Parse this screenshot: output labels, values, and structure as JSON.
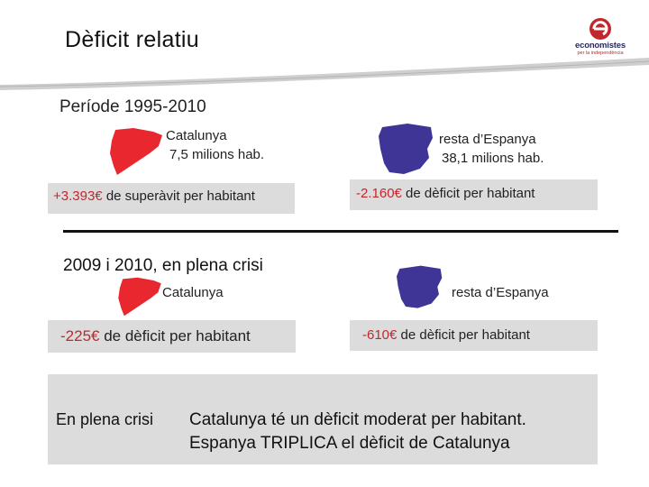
{
  "header": {
    "title": "Dèficit  relatiu",
    "logo_name": "economistes",
    "logo_sub": "per la independència"
  },
  "period1": {
    "label": "Període 1995-2010",
    "cat_label_1": "Catalunya",
    "cat_label_2": "7,5 milions hab.",
    "esp_label_1": "resta d’Espanya",
    "esp_label_2": "38,1 milions hab.",
    "cat_value": "+3.393€",
    "cat_text": "de superàvit per habitant",
    "esp_value": "-2.160€",
    "esp_text": "de dèficit per habitant"
  },
  "period2": {
    "label": "2009 i 2010, en plena crisi",
    "cat_label": "Catalunya",
    "esp_label": "resta d’Espanya",
    "cat_value": "-225€",
    "cat_text": "de dèficit per habitant",
    "esp_value": "-610€",
    "esp_text": "de dèficit per habitant"
  },
  "conclusion": {
    "tag": "En plena crisi",
    "line1": "Catalunya té un dèficit moderat per habitant.",
    "line2": "Espanya TRIPLICA el dèficit de Catalunya"
  },
  "colors": {
    "catalonia": "#e8272e",
    "spain": "#3f3596",
    "value_red": "#c0282e",
    "box_gray": "#dcdcdc"
  }
}
